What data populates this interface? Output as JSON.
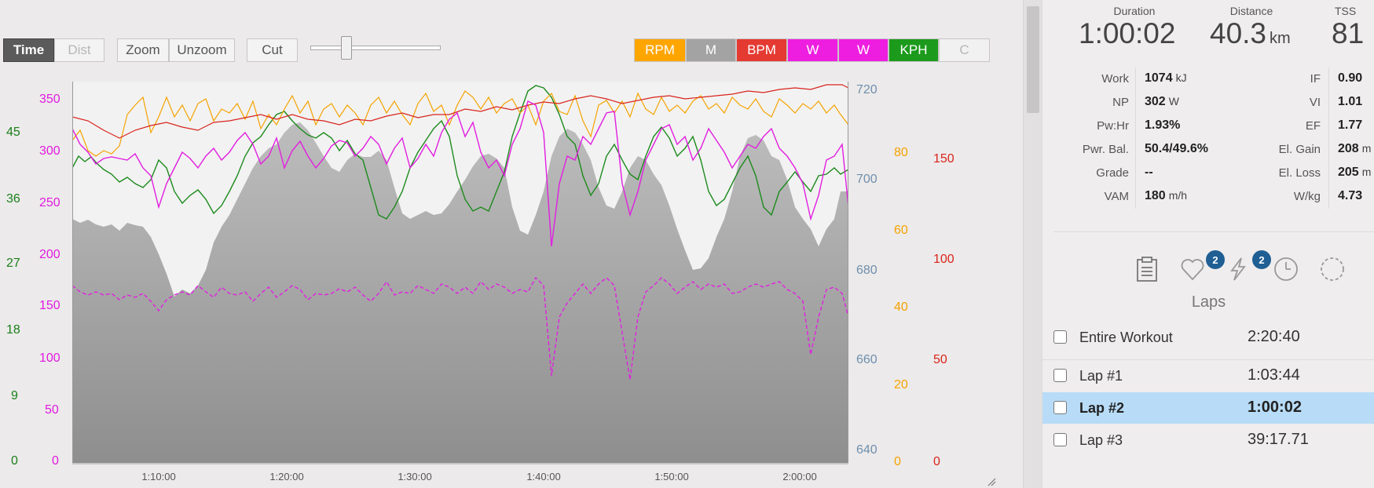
{
  "toolbar": {
    "time_label": "Time",
    "dist_label": "Dist",
    "zoom_label": "Zoom",
    "unzoom_label": "Unzoom",
    "cut_label": "Cut",
    "channels": [
      {
        "label": "RPM",
        "color": "#ffa500"
      },
      {
        "label": "M",
        "color": "#a3a3a3"
      },
      {
        "label": "BPM",
        "color": "#e43a32"
      },
      {
        "label": "W",
        "color": "#ee1ee0"
      },
      {
        "label": "W",
        "color": "#ee1ee0"
      },
      {
        "label": "KPH",
        "color": "#1c9a1c"
      },
      {
        "label": "C",
        "color": "#f2f1f1"
      }
    ]
  },
  "chart_data": {
    "type": "line",
    "x_ticks": [
      "1:10:00",
      "1:20:00",
      "1:30:00",
      "1:40:00",
      "1:50:00",
      "2:00:00"
    ],
    "axes": {
      "kph": {
        "ticks": [
          "45",
          "36",
          "27",
          "18",
          "9",
          "0"
        ],
        "color": "#1a7f1a"
      },
      "watts": {
        "ticks": [
          "350",
          "300",
          "250",
          "200",
          "150",
          "100",
          "50",
          "0"
        ],
        "color": "#e11ae0"
      },
      "elevation": {
        "ticks": [
          "720",
          "700",
          "680",
          "660",
          "640"
        ],
        "color": "#6f8fae"
      },
      "rpm": {
        "ticks": [
          "80",
          "60",
          "40",
          "20",
          "0"
        ],
        "color": "#f5a300"
      },
      "bpm": {
        "ticks": [
          "150",
          "100",
          "50",
          "0"
        ],
        "color": "#d9241c"
      }
    },
    "series_colors": {
      "elevation": "#a8a8a8",
      "speed": "#1d8a1d",
      "power": "#e21ee0",
      "cadence": "#f5a300",
      "heart_rate": "#d9241c"
    }
  },
  "summary": {
    "duration": {
      "label": "Duration",
      "value": "1:00:02"
    },
    "distance": {
      "label": "Distance",
      "value": "40.3",
      "unit": "km"
    },
    "tss": {
      "label": "TSS",
      "value": "81"
    }
  },
  "stats_left": [
    {
      "label": "Work",
      "value": "1074",
      "unit": "kJ"
    },
    {
      "label": "NP",
      "value": "302",
      "unit": "W"
    },
    {
      "label": "Pw:Hr",
      "value": "1.93%",
      "unit": ""
    },
    {
      "label": "Pwr. Bal.",
      "value": "50.4/49.6%",
      "unit": ""
    },
    {
      "label": "Grade",
      "value": "--",
      "unit": ""
    },
    {
      "label": "VAM",
      "value": "180",
      "unit": "m/h"
    }
  ],
  "stats_right": [
    {
      "label": "IF",
      "value": "0.90",
      "unit": ""
    },
    {
      "label": "VI",
      "value": "1.01",
      "unit": ""
    },
    {
      "label": "EF",
      "value": "1.77",
      "unit": ""
    },
    {
      "label": "El. Gain",
      "value": "208",
      "unit": "m"
    },
    {
      "label": "El. Loss",
      "value": "205",
      "unit": "m"
    },
    {
      "label": "W/kg",
      "value": "4.73",
      "unit": ""
    }
  ],
  "tools": {
    "heart_badge": "2",
    "power_badge": "2"
  },
  "laps": {
    "title": "Laps",
    "rows": [
      {
        "name": "Entire Workout",
        "time": "2:20:40"
      },
      {
        "name": "Lap #1",
        "time": "1:03:44"
      },
      {
        "name": "Lap #2",
        "time": "1:00:02"
      },
      {
        "name": "Lap #3",
        "time": "39:17.71"
      }
    ]
  }
}
